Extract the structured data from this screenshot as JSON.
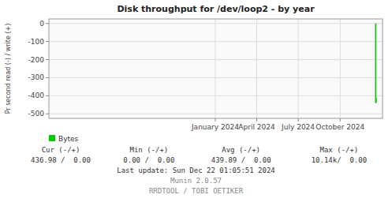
{
  "chart_data": {
    "type": "line",
    "title": "Disk throughput for /dev/loop2 - by year",
    "y_label": "Pr second read (-) / write (+)",
    "x": [
      1734480000,
      1734480000,
      1734566400,
      1734566400
    ],
    "series": [
      {
        "name": "Bytes",
        "color": "#00cc00",
        "values": [
          0,
          -436.98,
          -436.98,
          -410.0
        ]
      }
    ],
    "xlim": [
      1672531200,
      1735776000
    ],
    "xticks": [
      {
        "value": 1704067200,
        "label": "January 2024"
      },
      {
        "value": 1711929600,
        "label": "April 2024"
      },
      {
        "value": 1719792000,
        "label": "July 2024"
      },
      {
        "value": 1727740800,
        "label": "October 2024"
      }
    ],
    "ylim": [
      -525,
      25
    ],
    "yticks": [
      0,
      -100,
      -200,
      -300,
      -400,
      -500
    ],
    "grid": true,
    "legend": "bottom",
    "annotations": [
      [
        "Cur (-/+)",
        "Min (-/+)",
        "Avg (-/+)",
        "Max (-/+)"
      ],
      [
        "436.98 /  0.00",
        "0.00 /  0.00",
        "439.89 /  0.00",
        "10.14k/  0.00"
      ],
      [
        "Last update: Sun Dec 22 01:05:51 2024"
      ],
      [
        "Munin 2.0.57"
      ],
      [
        "RRDTOOL / TOBI OETIKER"
      ]
    ]
  }
}
